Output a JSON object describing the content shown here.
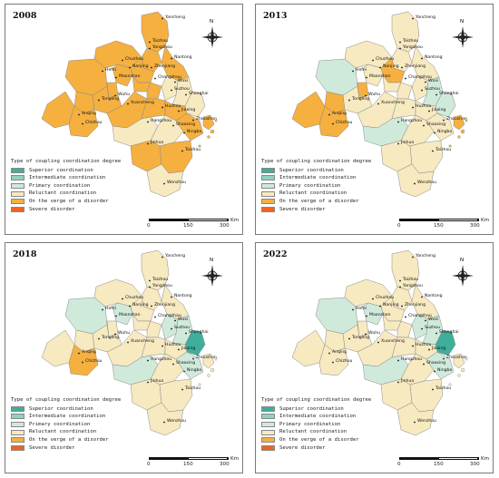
{
  "colors": {
    "superior": "#3fae9b",
    "intermediate": "#8fd2c2",
    "primary": "#cfeadb",
    "reluctant": "#f7e9c0",
    "verge": "#f5b040",
    "severe": "#ef6420"
  },
  "legend": {
    "title": "Type of coupling coordination degree",
    "items": [
      {
        "key": "superior",
        "label": "Superior coordination"
      },
      {
        "key": "intermediate",
        "label": "Intermediate coordination"
      },
      {
        "key": "primary",
        "label": "Primary coordination"
      },
      {
        "key": "reluctant",
        "label": "Reluctant coordination"
      },
      {
        "key": "verge",
        "label": "On the verge of a disorder"
      },
      {
        "key": "severe",
        "label": "Severe disorder"
      }
    ]
  },
  "scale": {
    "t0": "0",
    "t1": "150",
    "t2": "300",
    "unit": "Km"
  },
  "compass": "N",
  "cities": [
    "Yancheng",
    "Taizhou",
    "Nantong",
    "Chuzhou",
    "Yangzhou",
    "Nanjing",
    "Zhenjiang",
    "Hefei",
    "Maanshan",
    "Changzhou",
    "Wuxi",
    "Suzhou",
    "Shanghai",
    "Wuhu",
    "Tongling",
    "Xuancheng",
    "Huzhou",
    "Jiaxing",
    "Anqing",
    "Chizhou",
    "Hangzhou",
    "Shaoxing",
    "Ningbo",
    "Zhoushan",
    "Jinhua",
    "Taizhou",
    "Wenzhou"
  ],
  "panels": [
    {
      "year": "2008",
      "regions": {
        "Yancheng": "verge",
        "Taizhou_js": "verge",
        "Nantong": "verge",
        "Chuzhou": "verge",
        "Yangzhou": "verge",
        "Nanjing": "verge",
        "Zhenjiang": "verge",
        "Hefei": "verge",
        "Maanshan": "verge",
        "Changzhou": "verge",
        "Wuxi": "reluctant",
        "Suzhou": "reluctant",
        "Shanghai": "reluctant",
        "Wuhu": "verge",
        "Tongling": "verge",
        "Xuancheng": "verge",
        "Huzhou": "verge",
        "Jiaxing": "verge",
        "Anqing": "verge",
        "Chizhou": "verge",
        "Hangzhou": "reluctant",
        "Shaoxing": "reluctant",
        "Ningbo": "verge",
        "Zhoushan": "verge",
        "Jinhua": "verge",
        "Taizhou_zj": "verge",
        "Wenzhou": "reluctant"
      }
    },
    {
      "year": "2013",
      "regions": {
        "Yancheng": "reluctant",
        "Taizhou_js": "reluctant",
        "Nantong": "reluctant",
        "Chuzhou": "reluctant",
        "Yangzhou": "verge",
        "Nanjing": "reluctant",
        "Zhenjiang": "reluctant",
        "Hefei": "primary",
        "Maanshan": "verge",
        "Changzhou": "reluctant",
        "Wuxi": "reluctant",
        "Suzhou": "primary",
        "Shanghai": "primary",
        "Wuhu": "reluctant",
        "Tongling": "verge",
        "Xuancheng": "reluctant",
        "Huzhou": "reluctant",
        "Jiaxing": "reluctant",
        "Anqing": "verge",
        "Chizhou": "verge",
        "Hangzhou": "primary",
        "Shaoxing": "reluctant",
        "Ningbo": "reluctant",
        "Zhoushan": "verge",
        "Jinhua": "reluctant",
        "Taizhou_zj": "reluctant",
        "Wenzhou": "reluctant"
      }
    },
    {
      "year": "2018",
      "regions": {
        "Yancheng": "reluctant",
        "Taizhou_js": "reluctant",
        "Nantong": "reluctant",
        "Chuzhou": "reluctant",
        "Yangzhou": "reluctant",
        "Nanjing": "primary",
        "Zhenjiang": "reluctant",
        "Hefei": "primary",
        "Maanshan": "reluctant",
        "Changzhou": "reluctant",
        "Wuxi": "primary",
        "Suzhou": "primary",
        "Shanghai": "superior",
        "Wuhu": "reluctant",
        "Tongling": "reluctant",
        "Xuancheng": "reluctant",
        "Huzhou": "reluctant",
        "Jiaxing": "reluctant",
        "Anqing": "reluctant",
        "Chizhou": "verge",
        "Hangzhou": "primary",
        "Shaoxing": "reluctant",
        "Ningbo": "primary",
        "Zhoushan": "reluctant",
        "Jinhua": "reluctant",
        "Taizhou_zj": "reluctant",
        "Wenzhou": "reluctant"
      }
    },
    {
      "year": "2022",
      "regions": {
        "Yancheng": "reluctant",
        "Taizhou_js": "reluctant",
        "Nantong": "reluctant",
        "Chuzhou": "reluctant",
        "Yangzhou": "reluctant",
        "Nanjing": "primary",
        "Zhenjiang": "reluctant",
        "Hefei": "primary",
        "Maanshan": "reluctant",
        "Changzhou": "reluctant",
        "Wuxi": "primary",
        "Suzhou": "primary",
        "Shanghai": "superior",
        "Wuhu": "reluctant",
        "Tongling": "reluctant",
        "Xuancheng": "reluctant",
        "Huzhou": "reluctant",
        "Jiaxing": "reluctant",
        "Anqing": "reluctant",
        "Chizhou": "reluctant",
        "Hangzhou": "primary",
        "Shaoxing": "reluctant",
        "Ningbo": "primary",
        "Zhoushan": "reluctant",
        "Jinhua": "reluctant",
        "Taizhou_zj": "reluctant",
        "Wenzhou": "reluctant"
      }
    }
  ]
}
